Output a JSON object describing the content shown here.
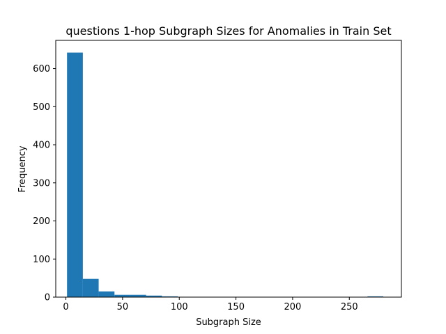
{
  "chart_data": {
    "type": "bar",
    "title": "questions 1-hop Subgraph Sizes for Anomalies in Train Set",
    "xlabel": "Subgraph Size",
    "ylabel": "Frequency",
    "xlim": [
      -8.95,
      295.95
    ],
    "ylim": [
      0,
      674.1
    ],
    "x_ticks": [
      0,
      50,
      100,
      150,
      200,
      250
    ],
    "y_ticks": [
      0,
      100,
      200,
      300,
      400,
      500,
      600
    ],
    "bar_color": "#1f77b4",
    "bin_edges": [
      1.0,
      14.95,
      28.9,
      42.85,
      56.8,
      70.75,
      84.7,
      98.65,
      112.6,
      126.55,
      140.5,
      154.45,
      168.4,
      182.35,
      196.3,
      210.25,
      224.2,
      238.15,
      252.1,
      266.05,
      280.0
    ],
    "values": [
      642,
      48,
      15,
      6,
      6,
      4,
      2,
      0,
      0,
      0,
      0,
      0,
      0,
      0,
      0,
      0,
      0,
      0,
      0,
      2
    ],
    "grid": false
  }
}
